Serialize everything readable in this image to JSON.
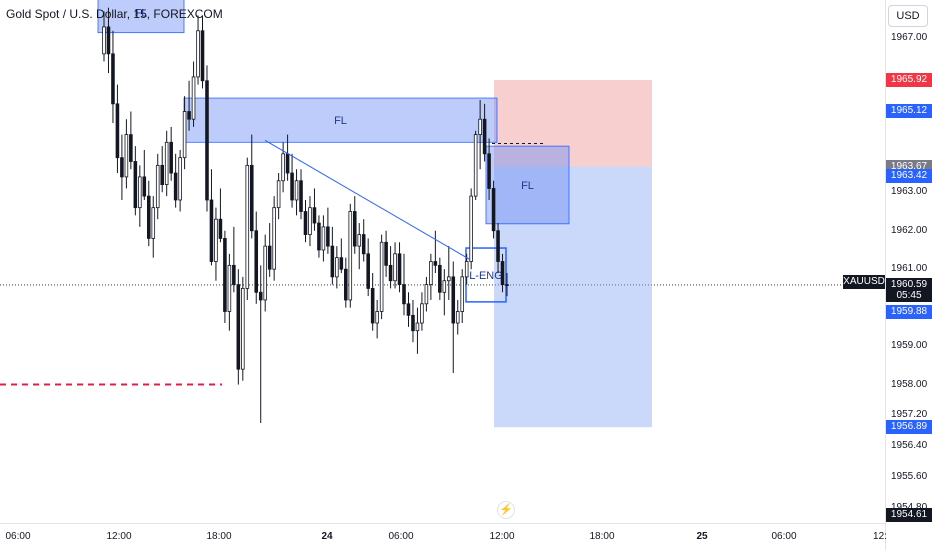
{
  "title": "Gold Spot / U.S. Dollar, 15, FOREXCOM",
  "currency": "USD",
  "symbol": "XAUUSD",
  "countdown": "05:45",
  "icons": {
    "alert": "lightning-bolt-icon"
  },
  "colors": {
    "bull": "#ffffff",
    "bear": "#131722",
    "zone": "#6c8ff5",
    "zone_border": "#2962ff",
    "stop_zone": "#f5b5b5",
    "target_zone": "#8aa8f5",
    "trendline": "#2962ff",
    "dashed_level": "#e01e48",
    "tag_red": "#f23645",
    "tag_blue": "#2962ff",
    "tag_gray": "#787b86",
    "tag_dark": "#131722"
  },
  "chart_data": {
    "type": "candlestick",
    "instrument": "XAUUSD",
    "timeframe": "15",
    "y_axis": {
      "ticks": [
        "1967.00",
        "1963.00",
        "1962.00",
        "1961.00",
        "1959.00",
        "1958.00",
        "1957.20",
        "1956.40",
        "1955.60",
        "1954.80"
      ],
      "range": [
        1954.4,
        1968.0
      ]
    },
    "x_axis": {
      "ticks": [
        "06:00",
        "12:00",
        "18:00",
        "24",
        "06:00",
        "12:00",
        "18:00",
        "25",
        "06:00",
        "12:"
      ]
    },
    "price_tags": [
      {
        "label": "1965.92",
        "kind": "red"
      },
      {
        "label": "1965.12",
        "kind": "blue"
      },
      {
        "label": "1963.67",
        "kind": "gray"
      },
      {
        "label": "1963.42",
        "kind": "blue"
      },
      {
        "label": "1960.59",
        "kind": "dark"
      },
      {
        "label": "1959.88",
        "kind": "blue"
      },
      {
        "label": "1956.89",
        "kind": "blue"
      },
      {
        "label": "1954.61",
        "kind": "dark"
      }
    ],
    "zones": [
      {
        "label": "FL",
        "top": 1968.2,
        "bottom": 1967.15
      },
      {
        "label": "FL",
        "top": 1965.45,
        "bottom": 1964.3
      },
      {
        "label": "FL",
        "top": 1964.2,
        "bottom": 1962.18
      },
      {
        "label": "L-ENG",
        "top": 1961.55,
        "bottom": 1960.15
      }
    ],
    "position": {
      "entry": 1963.67,
      "stop": 1965.92,
      "target": 1956.89,
      "last": 1960.59
    },
    "trendline": {
      "from": 1964.35,
      "to": 1961.25
    },
    "dashed_level": 1958.0,
    "ohlc": [
      [
        1966.6,
        1967.7,
        1966.4,
        1967.3
      ],
      [
        1967.3,
        1967.8,
        1966.1,
        1966.6
      ],
      [
        1966.6,
        1967.2,
        1964.8,
        1965.3
      ],
      [
        1965.3,
        1965.8,
        1963.5,
        1963.9
      ],
      [
        1963.9,
        1964.5,
        1962.8,
        1963.4
      ],
      [
        1963.4,
        1964.9,
        1963.1,
        1964.5
      ],
      [
        1964.5,
        1965.1,
        1963.6,
        1963.8
      ],
      [
        1963.8,
        1964.2,
        1962.4,
        1962.6
      ],
      [
        1962.6,
        1963.7,
        1962.1,
        1963.4
      ],
      [
        1963.4,
        1964.1,
        1962.8,
        1962.9
      ],
      [
        1962.9,
        1963.3,
        1961.6,
        1961.8
      ],
      [
        1961.8,
        1962.9,
        1961.3,
        1962.6
      ],
      [
        1962.6,
        1964.0,
        1962.3,
        1963.7
      ],
      [
        1963.7,
        1964.2,
        1963.0,
        1963.2
      ],
      [
        1963.2,
        1964.6,
        1962.9,
        1964.3
      ],
      [
        1964.3,
        1964.7,
        1963.3,
        1963.5
      ],
      [
        1963.5,
        1964.0,
        1962.6,
        1962.8
      ],
      [
        1962.8,
        1964.1,
        1962.5,
        1963.9
      ],
      [
        1963.9,
        1965.5,
        1963.6,
        1965.1
      ],
      [
        1965.1,
        1965.9,
        1964.6,
        1964.9
      ],
      [
        1964.9,
        1966.4,
        1964.7,
        1966.0
      ],
      [
        1966.0,
        1967.6,
        1965.8,
        1967.2
      ],
      [
        1967.2,
        1967.6,
        1965.7,
        1965.9
      ],
      [
        1965.9,
        1966.3,
        1962.5,
        1962.8
      ],
      [
        1962.8,
        1963.6,
        1961.1,
        1961.2
      ],
      [
        1961.2,
        1962.6,
        1960.7,
        1962.3
      ],
      [
        1962.3,
        1963.1,
        1961.7,
        1961.8
      ],
      [
        1961.8,
        1962.0,
        1959.6,
        1959.9
      ],
      [
        1959.9,
        1961.4,
        1959.4,
        1961.1
      ],
      [
        1961.1,
        1962.1,
        1960.4,
        1960.6
      ],
      [
        1960.6,
        1961.0,
        1958.0,
        1958.4
      ],
      [
        1958.4,
        1960.8,
        1958.1,
        1960.5
      ],
      [
        1960.5,
        1963.9,
        1960.2,
        1963.7
      ],
      [
        1963.7,
        1964.5,
        1961.8,
        1962.0
      ],
      [
        1962.0,
        1962.5,
        1960.1,
        1960.4
      ],
      [
        1960.4,
        1961.1,
        1957.0,
        1960.2
      ],
      [
        1960.2,
        1961.9,
        1959.9,
        1961.6
      ],
      [
        1961.6,
        1962.2,
        1960.8,
        1961.0
      ],
      [
        1961.0,
        1962.9,
        1960.7,
        1962.6
      ],
      [
        1962.6,
        1963.5,
        1962.3,
        1963.3
      ],
      [
        1963.3,
        1964.3,
        1963.0,
        1964.0
      ],
      [
        1964.0,
        1964.5,
        1963.3,
        1963.5
      ],
      [
        1963.5,
        1964.0,
        1962.6,
        1962.8
      ],
      [
        1962.8,
        1963.6,
        1962.4,
        1963.3
      ],
      [
        1963.3,
        1963.6,
        1962.3,
        1962.5
      ],
      [
        1962.5,
        1962.8,
        1961.7,
        1961.9
      ],
      [
        1961.9,
        1962.9,
        1961.6,
        1962.6
      ],
      [
        1962.6,
        1963.1,
        1962.0,
        1962.2
      ],
      [
        1962.2,
        1962.4,
        1961.3,
        1961.5
      ],
      [
        1961.5,
        1962.4,
        1961.2,
        1962.1
      ],
      [
        1962.1,
        1962.6,
        1961.4,
        1961.6
      ],
      [
        1961.6,
        1962.1,
        1960.6,
        1960.8
      ],
      [
        1960.8,
        1961.6,
        1960.5,
        1961.3
      ],
      [
        1961.3,
        1961.8,
        1960.9,
        1961.0
      ],
      [
        1961.0,
        1961.3,
        1960.0,
        1960.2
      ],
      [
        1960.2,
        1962.7,
        1960.0,
        1962.5
      ],
      [
        1962.5,
        1962.9,
        1961.4,
        1961.6
      ],
      [
        1961.6,
        1962.2,
        1961.0,
        1961.9
      ],
      [
        1961.9,
        1962.3,
        1961.2,
        1961.4
      ],
      [
        1961.4,
        1961.8,
        1960.3,
        1960.5
      ],
      [
        1960.5,
        1960.9,
        1959.4,
        1959.6
      ],
      [
        1959.6,
        1960.2,
        1959.2,
        1959.9
      ],
      [
        1959.9,
        1961.9,
        1959.7,
        1961.7
      ],
      [
        1961.7,
        1962.0,
        1960.8,
        1961.1
      ],
      [
        1961.1,
        1961.6,
        1960.5,
        1960.7
      ],
      [
        1960.7,
        1961.7,
        1960.5,
        1961.4
      ],
      [
        1961.4,
        1961.7,
        1960.4,
        1960.6
      ],
      [
        1960.6,
        1961.4,
        1959.8,
        1960.1
      ],
      [
        1960.1,
        1960.4,
        1959.5,
        1959.8
      ],
      [
        1959.8,
        1960.2,
        1959.1,
        1959.4
      ],
      [
        1959.4,
        1960.0,
        1958.8,
        1959.6
      ],
      [
        1959.6,
        1960.4,
        1959.4,
        1960.1
      ],
      [
        1960.1,
        1960.8,
        1959.9,
        1960.6
      ],
      [
        1960.6,
        1961.4,
        1960.2,
        1961.2
      ],
      [
        1961.2,
        1962.0,
        1960.9,
        1961.1
      ],
      [
        1961.1,
        1961.3,
        1960.2,
        1960.4
      ],
      [
        1960.4,
        1961.0,
        1959.8,
        1960.7
      ],
      [
        1960.7,
        1961.6,
        1960.2,
        1960.8
      ],
      [
        1960.8,
        1961.2,
        1958.3,
        1959.6
      ],
      [
        1959.6,
        1960.2,
        1959.3,
        1959.9
      ],
      [
        1959.9,
        1961.0,
        1959.6,
        1960.8
      ],
      [
        1960.8,
        1961.4,
        1960.6,
        1961.2
      ],
      [
        1961.2,
        1963.1,
        1961.0,
        1962.9
      ],
      [
        1962.9,
        1964.6,
        1962.8,
        1964.5
      ],
      [
        1964.5,
        1965.4,
        1963.6,
        1964.9
      ],
      [
        1964.9,
        1965.3,
        1963.8,
        1964.0
      ],
      [
        1964.0,
        1964.4,
        1962.8,
        1963.1
      ],
      [
        1963.1,
        1963.3,
        1961.8,
        1962.0
      ],
      [
        1962.0,
        1962.2,
        1960.9,
        1961.2
      ],
      [
        1961.2,
        1961.4,
        1960.4,
        1960.6
      ],
      [
        1960.6,
        1960.9,
        1960.3,
        1960.59
      ]
    ]
  }
}
